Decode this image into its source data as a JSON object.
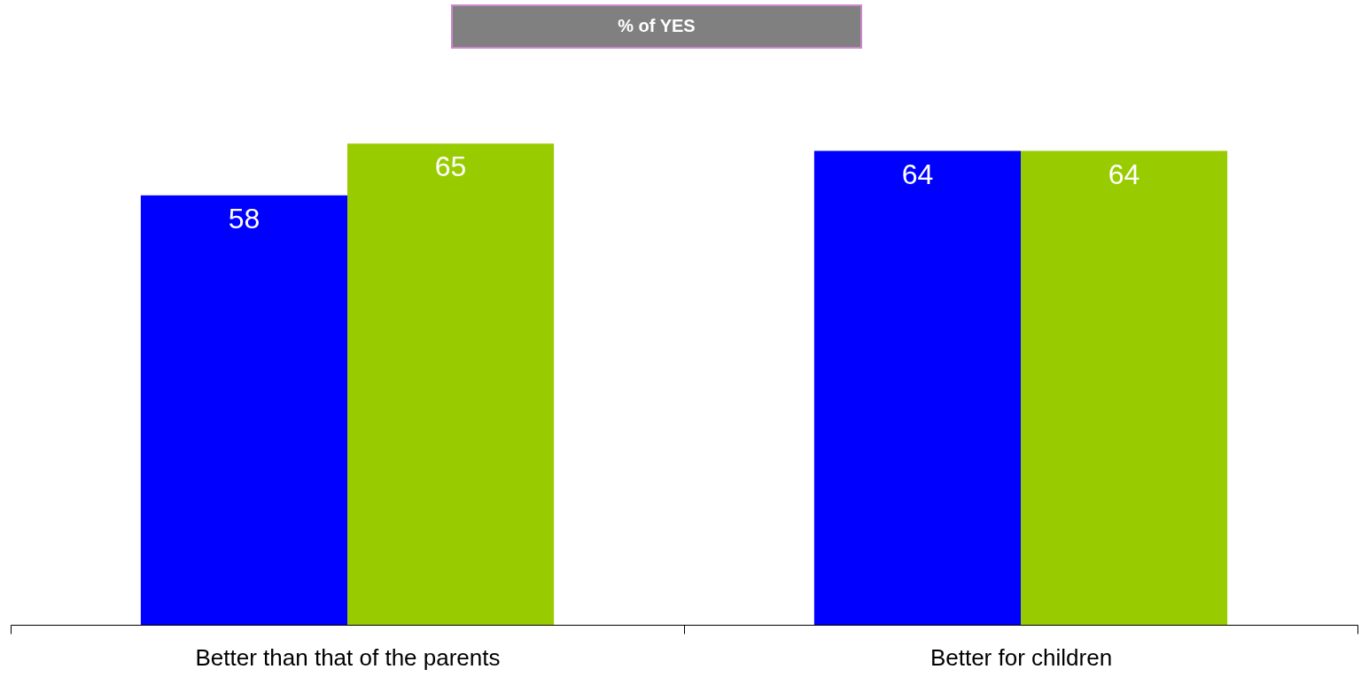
{
  "chart_data": {
    "type": "bar",
    "title": "% of YES",
    "categories": [
      "Better than that of the parents",
      "Better for children"
    ],
    "series": [
      {
        "color": "#0000ff",
        "values": [
          58,
          64
        ]
      },
      {
        "color": "#99cc00",
        "values": [
          65,
          64
        ]
      }
    ],
    "data_labels": true,
    "grid": false,
    "legend": false
  }
}
